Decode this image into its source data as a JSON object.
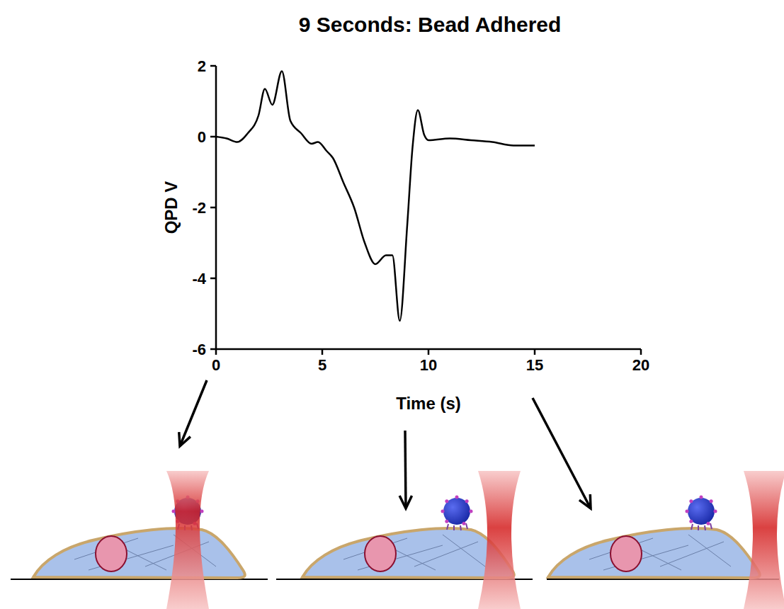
{
  "chart_data": {
    "type": "line",
    "title": "9 Seconds: Bead Adhered",
    "xlabel": "Time (s)",
    "ylabel": "QPD  V",
    "x": [
      0,
      0.5,
      1,
      1.5,
      2,
      2.3,
      2.65,
      3.1,
      3.5,
      4,
      4.5,
      4.8,
      5.2,
      5.5,
      6,
      6.5,
      7,
      7.5,
      8,
      8.3,
      8.65,
      9,
      9.25,
      9.5,
      9.8,
      10,
      11,
      12,
      13,
      14,
      15
    ],
    "values": [
      0,
      -0.05,
      -0.15,
      0.1,
      0.6,
      1.35,
      0.9,
      1.85,
      0.45,
      0.1,
      -0.2,
      -0.15,
      -0.4,
      -0.6,
      -1.3,
      -2.0,
      -3.0,
      -3.6,
      -3.35,
      -3.35,
      -5.2,
      -2.5,
      -0.3,
      0.75,
      0.05,
      -0.1,
      -0.05,
      -0.1,
      -0.15,
      -0.25,
      -0.25
    ],
    "color": "#000000",
    "xlim": [
      0,
      20
    ],
    "ylim": [
      -6,
      2
    ],
    "xticks": [
      0,
      5,
      10,
      15,
      20
    ],
    "yticks": [
      -6,
      -4,
      -2,
      0,
      2
    ]
  }
}
